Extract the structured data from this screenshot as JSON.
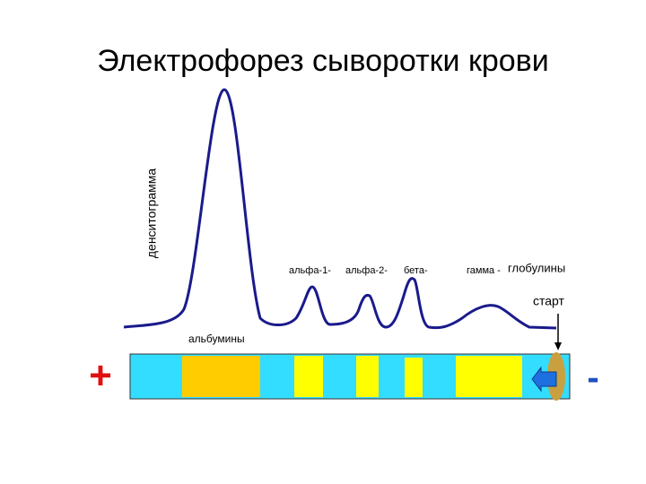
{
  "title": "Электрофорез сыворотки крови",
  "axis_label": "денситограмма",
  "peaks": {
    "alpha1": "альфа-1-",
    "alpha2": "альфа-2-",
    "beta": "бета-",
    "gamma": "гамма - ",
    "globulins": "глобулины",
    "albumins": "альбумины"
  },
  "start": "старт",
  "anode": "+",
  "cathode": "-"
}
